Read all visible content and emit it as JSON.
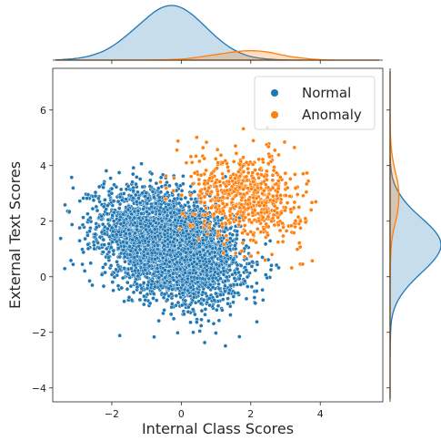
{
  "chart_data": {
    "type": "scatter",
    "variant": "jointplot-with-marginal-kde",
    "xlabel": "Internal Class Scores",
    "ylabel": "External Text Scores",
    "xlim": [
      -3.7,
      5.8
    ],
    "ylim": [
      -4.5,
      7.5
    ],
    "xticks": [
      -2,
      0,
      2,
      4
    ],
    "yticks": [
      -4,
      -2,
      0,
      2,
      4,
      6
    ],
    "legend": {
      "placement": "top-right"
    },
    "grid": false,
    "series": [
      {
        "name": "Normal",
        "color": "#1f77b4",
        "approx_points": 4200,
        "center": [
          -0.3,
          1.1
        ],
        "sd": [
          0.95,
          0.95
        ],
        "correlation": -0.35,
        "marginal_x_peak": -0.3,
        "marginal_y_peak": 1.4
      },
      {
        "name": "Anomaly",
        "color": "#ff7f0e",
        "approx_points": 650,
        "center": [
          1.9,
          2.9
        ],
        "sd": [
          0.8,
          0.8
        ],
        "correlation": -0.2,
        "marginal_x_peak": 1.9,
        "marginal_y_peak": 3.0
      }
    ]
  }
}
